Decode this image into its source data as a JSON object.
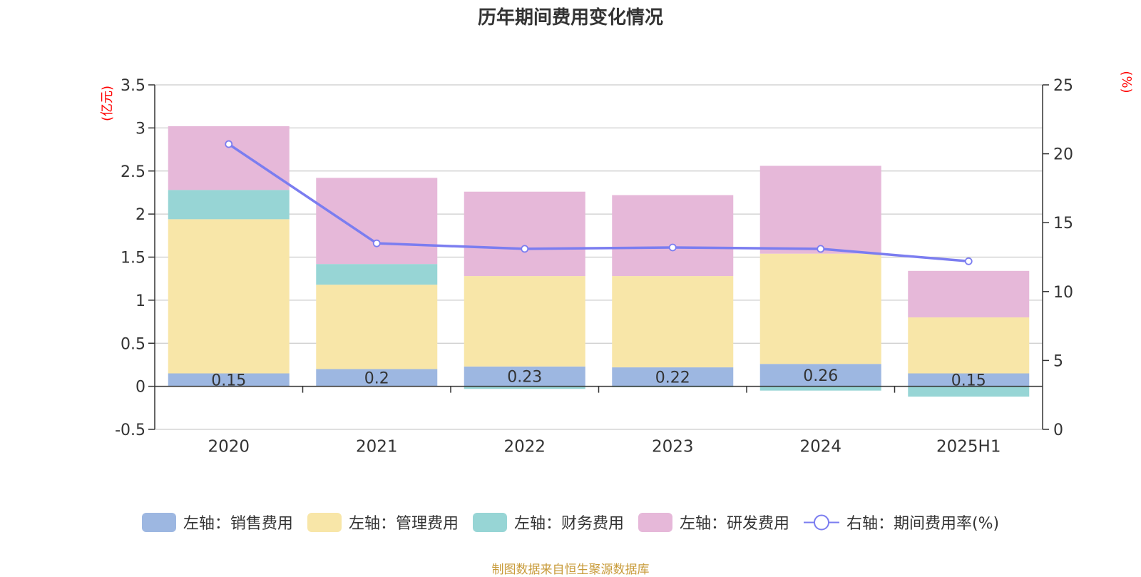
{
  "source_note": "制图数据来自恒生聚源数据库",
  "colors": {
    "sales": "#9db7e1",
    "admin": "#f8e6a8",
    "finance": "#97d5d5",
    "rd": "#e6b8d9",
    "rate_line": "#7b7df0",
    "axis_unit": "#ff0000",
    "grid": "#cccccc",
    "axis": "#333333"
  },
  "chart_data": {
    "type": "bar",
    "title": "历年期间费用变化情况",
    "categories": [
      "2020",
      "2021",
      "2022",
      "2023",
      "2024",
      "2025H1"
    ],
    "left_axis": {
      "label": "(亿元)",
      "ylim": [
        -0.5,
        3.5
      ],
      "ticks": [
        "-0.5",
        "0",
        "0.5",
        "1",
        "1.5",
        "2",
        "2.5",
        "3",
        "3.5"
      ]
    },
    "right_axis": {
      "label": "(%)",
      "ylim": [
        0,
        25
      ],
      "ticks": [
        "0",
        "5",
        "10",
        "15",
        "20",
        "25"
      ]
    },
    "grid": true,
    "legend_position": "bottom",
    "series": [
      {
        "name": "左轴：销售费用",
        "type": "bar",
        "stack": true,
        "values": [
          0.15,
          0.2,
          0.23,
          0.22,
          0.26,
          0.15
        ],
        "data_labels": [
          "0.15",
          "0.2",
          "0.23",
          "0.22",
          "0.26",
          "0.15"
        ]
      },
      {
        "name": "左轴：管理费用",
        "type": "bar",
        "stack": true,
        "values": [
          1.79,
          0.98,
          1.05,
          1.06,
          1.28,
          0.65
        ]
      },
      {
        "name": "左轴：财务费用",
        "type": "bar",
        "stack": true,
        "values": [
          0.34,
          0.24,
          -0.03,
          -0.01,
          -0.05,
          -0.12
        ]
      },
      {
        "name": "左轴：研发费用",
        "type": "bar",
        "stack": true,
        "values": [
          0.74,
          1.0,
          0.98,
          0.94,
          1.02,
          0.54
        ]
      },
      {
        "name": "右轴：期间费用率(%)",
        "type": "line",
        "axis": "right",
        "values": [
          20.7,
          13.5,
          13.1,
          13.2,
          13.1,
          12.2
        ]
      }
    ]
  }
}
